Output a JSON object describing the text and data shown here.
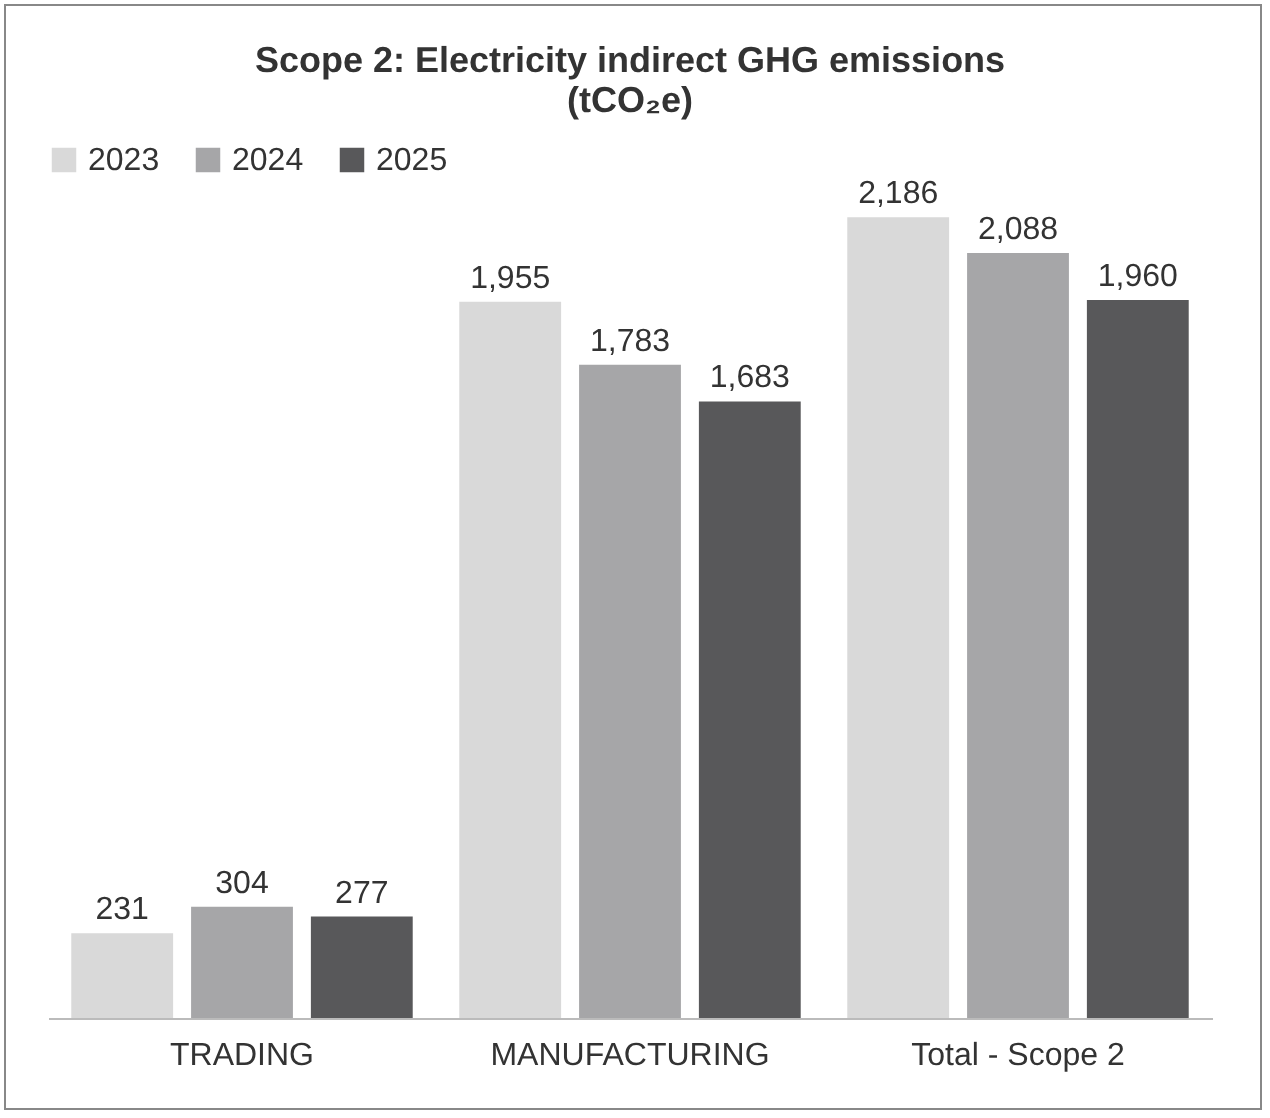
{
  "chart_data": {
    "type": "bar",
    "title": "Scope 2: Electricity indirect GHG emissions (tCO₂e)",
    "categories": [
      "TRADING",
      "MANUFACTURING",
      "Total - Scope 2"
    ],
    "series": [
      {
        "name": "2023",
        "color": "#d9d9d9",
        "values": [
          231,
          1955,
          2186
        ],
        "value_labels": [
          "231",
          "1,955",
          "2,186"
        ]
      },
      {
        "name": "2024",
        "color": "#a6a6a8",
        "values": [
          304,
          1783,
          2088
        ],
        "value_labels": [
          "304",
          "1,783",
          "2,088"
        ]
      },
      {
        "name": "2025",
        "color": "#58585a",
        "values": [
          277,
          1683,
          1960
        ],
        "value_labels": [
          "277",
          "1,683",
          "1,960"
        ]
      }
    ],
    "legend": "top",
    "grid": false
  }
}
